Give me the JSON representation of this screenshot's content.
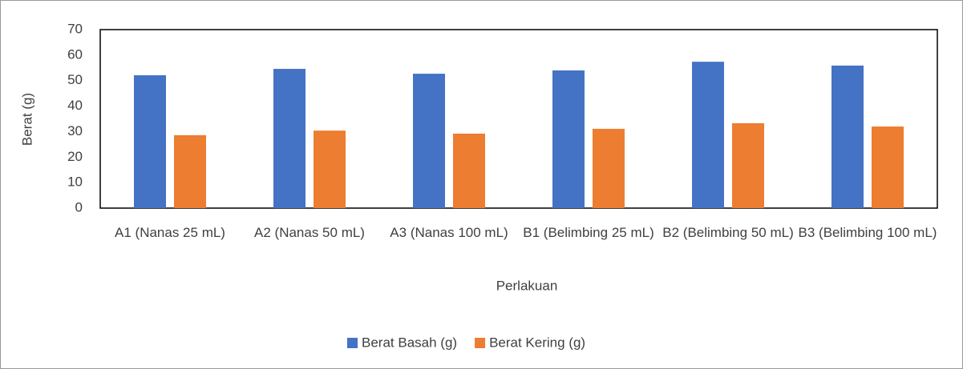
{
  "chart_data": {
    "type": "bar",
    "categories": [
      "A1 (Nanas 25 mL)",
      "A2 (Nanas 50 mL)",
      "A3 (Nanas 100 mL)",
      "B1 (Belimbing 25 mL)",
      "B2 (Belimbing 50 mL)",
      "B3 (Belimbing 100 mL)"
    ],
    "series": [
      {
        "name": "Berat Basah (g)",
        "color": "#4472c4",
        "values": [
          52.1,
          54.6,
          52.7,
          54.0,
          57.4,
          55.9
        ]
      },
      {
        "name": "Berat Kering (g)",
        "color": "#ed7d31",
        "values": [
          28.6,
          30.4,
          29.2,
          31.1,
          33.3,
          32.0
        ]
      }
    ],
    "xlabel": "Perlakuan",
    "ylabel": "Berat (g)",
    "ylim": [
      0,
      70
    ],
    "yticks": [
      0,
      10,
      20,
      30,
      40,
      50,
      60,
      70
    ],
    "legend": "bottom"
  }
}
